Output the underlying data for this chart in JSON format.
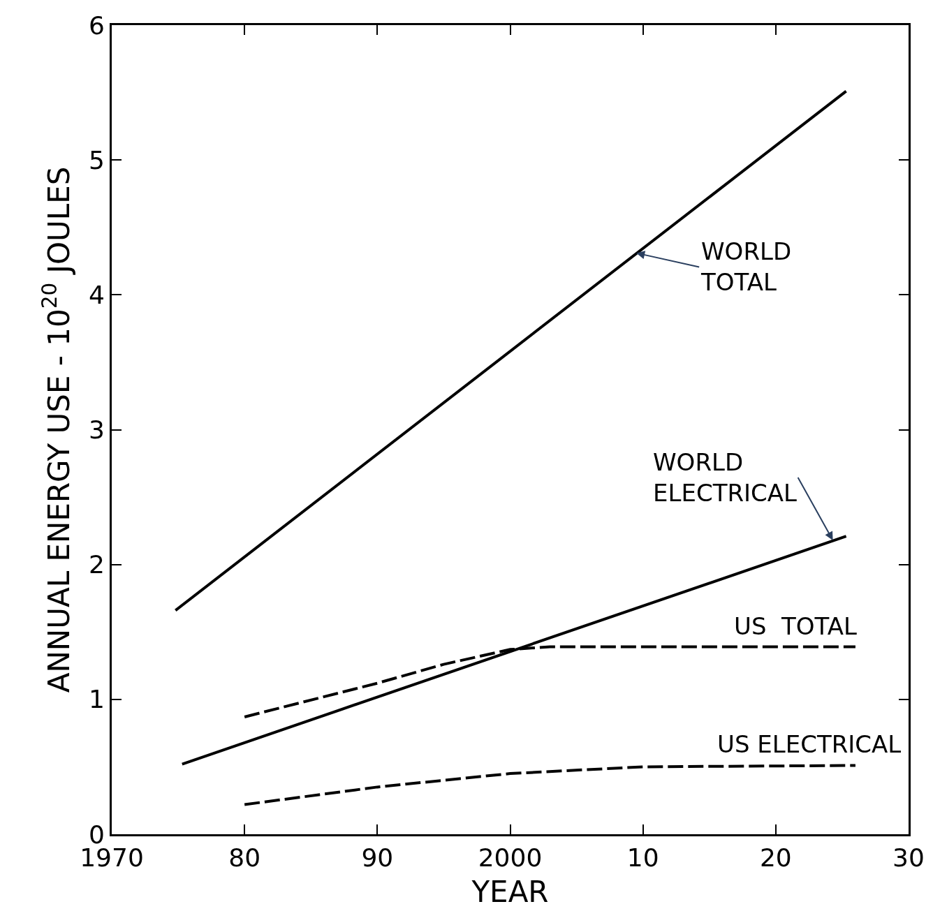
{
  "chart_data": {
    "type": "line",
    "xlabel": "YEAR",
    "ylabel": "ANNUAL ENERGY USE - 10$^{20}$ JOULES",
    "xlim": [
      1970,
      2030
    ],
    "xticks": [
      {
        "value": 1970,
        "label": "1970"
      },
      {
        "value": 1980,
        "label": "80"
      },
      {
        "value": 1990,
        "label": "90"
      },
      {
        "value": 2000,
        "label": "2000"
      },
      {
        "value": 2010,
        "label": "10"
      },
      {
        "value": 2020,
        "label": "20"
      },
      {
        "value": 2030,
        "label": "30"
      }
    ],
    "ylim": [
      0,
      6
    ],
    "yticks": [
      0,
      1,
      2,
      3,
      4,
      5,
      6
    ],
    "marker": "none",
    "series": [
      {
        "color": "#000000",
        "line_style": "solid",
        "x": [
          1974.8,
          2025.3
        ],
        "values": [
          1.66,
          5.51
        ]
      },
      {
        "color": "#000000",
        "line_style": "solid",
        "x": [
          1975.3,
          2025.3
        ],
        "values": [
          0.52,
          2.21
        ]
      },
      {
        "color": "#000000",
        "line_style": "dashed",
        "x": [
          1980,
          1990,
          1995,
          2000,
          2003,
          2026
        ],
        "values": [
          0.87,
          1.12,
          1.26,
          1.37,
          1.39,
          1.39
        ]
      },
      {
        "color": "#000000",
        "line_style": "dashed",
        "x": [
          1980,
          1990,
          2000,
          2010,
          2026
        ],
        "values": [
          0.22,
          0.35,
          0.45,
          0.5,
          0.51
        ]
      }
    ],
    "annotations": [
      {
        "text": "WORLD\nTOTAL",
        "x": 2009.5,
        "y": 4.31
      },
      {
        "text": "WORLD\nELECTRICAL",
        "x": 2024.3,
        "y": 2.18
      },
      {
        "text": "US  TOTAL",
        "x": 2021.5,
        "y": 1.39
      },
      {
        "text": "US ELECTRICAL",
        "x": 2022.5,
        "y": 0.51
      }
    ]
  }
}
